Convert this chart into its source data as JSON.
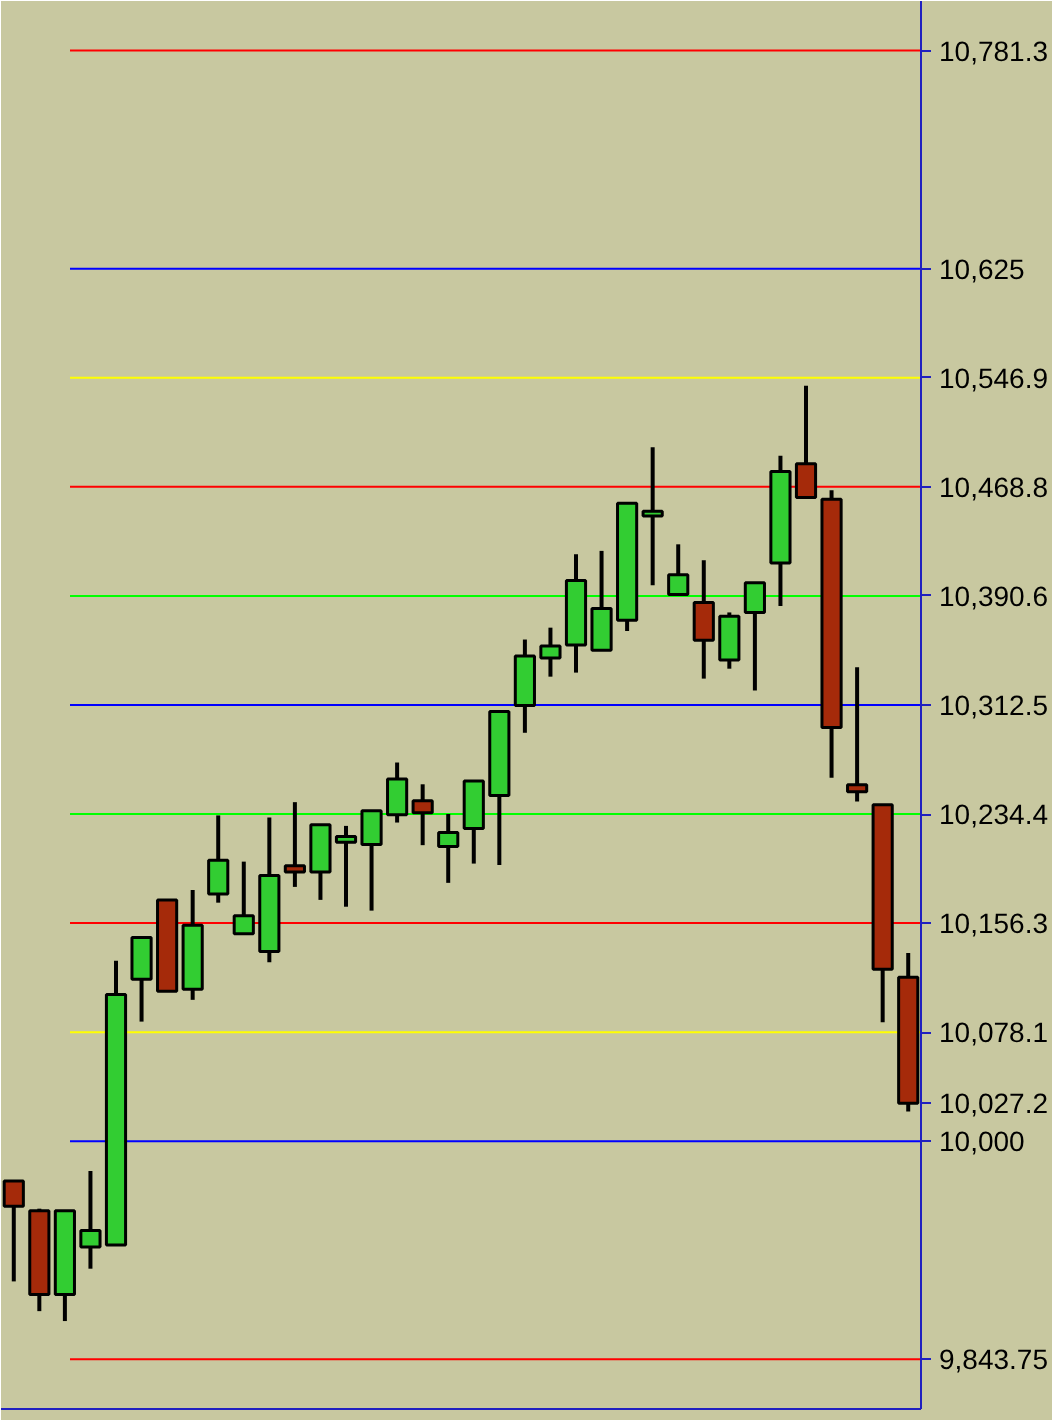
{
  "chart_data": {
    "type": "candlestick",
    "categories": [
      null,
      null,
      null,
      null,
      null,
      null,
      null,
      null,
      null,
      null,
      null,
      null,
      null,
      null,
      null,
      null,
      null,
      null,
      null,
      null,
      null,
      null,
      null,
      null,
      null,
      null,
      null,
      null,
      null,
      null,
      null,
      null,
      null,
      null,
      null,
      null
    ],
    "ohlc": [
      [
        9971.6,
        9971.6,
        9899.6,
        9953.5
      ],
      [
        9950.3,
        9951.7,
        9878.3,
        9890.2
      ],
      [
        9890.2,
        9950.3,
        9871.2,
        9950.3
      ],
      [
        9924.3,
        9978.7,
        9908.7,
        9936.1
      ],
      [
        9925.7,
        10129.3,
        9925.7,
        10105.1
      ],
      [
        10116.1,
        10145.9,
        10085.7,
        10145.9
      ],
      [
        10172.9,
        10172.9,
        10107.5,
        10107.5
      ],
      [
        10108.9,
        10180.0,
        10101.3,
        10154.8
      ],
      [
        10177.1,
        10233.4,
        10170.9,
        10201.3
      ],
      [
        10148.7,
        10200.3,
        10148.7,
        10161.5
      ],
      [
        10135.9,
        10232.0,
        10128.3,
        10190.3
      ],
      [
        10197.4,
        10242.9,
        10182.2,
        10192.8
      ],
      [
        10192.8,
        10226.8,
        10172.9,
        10226.8
      ],
      [
        10214.1,
        10225.9,
        10168.0,
        10218.3
      ],
      [
        10212.6,
        10236.8,
        10165.2,
        10236.8
      ],
      [
        10233.9,
        10271.3,
        10228.3,
        10259.5
      ],
      [
        10243.9,
        10255.7,
        10212.1,
        10235.4
      ],
      [
        10211.2,
        10234.4,
        10185.1,
        10221.2
      ],
      [
        10224.0,
        10258.1,
        10198.9,
        10258.1
      ],
      [
        10247.6,
        10307.8,
        10197.9,
        10307.8
      ],
      [
        10312.1,
        10359.4,
        10292.6,
        10347.6
      ],
      [
        10346.2,
        10367.9,
        10332.8,
        10354.7
      ],
      [
        10355.5,
        10420.5,
        10335.7,
        10401.6
      ],
      [
        10351.8,
        10422.9,
        10351.8,
        10381.7
      ],
      [
        10373.2,
        10457.0,
        10365.5,
        10457.0
      ],
      [
        10447.9,
        10497.2,
        10398.2,
        10451.3
      ],
      [
        10391.6,
        10427.6,
        10391.6,
        10405.8
      ],
      [
        10385.9,
        10416.2,
        10331.4,
        10358.9
      ],
      [
        10344.7,
        10378.8,
        10338.5,
        10376.0
      ],
      [
        10378.8,
        10400.1,
        10322.9,
        10400.1
      ],
      [
        10414.3,
        10491.0,
        10383.5,
        10479.7
      ],
      [
        10485.4,
        10541.2,
        10461.2,
        10461.2
      ],
      [
        10459.8,
        10466.3,
        10260.4,
        10296.4
      ],
      [
        10255.3,
        10339.5,
        10243.3,
        10250.4
      ],
      [
        10241.0,
        10241.0,
        10085.2,
        10123.2
      ],
      [
        10117.5,
        10134.9,
        10021.3,
        10027.2
      ]
    ],
    "colors": [
      "#a52a0a",
      "#a52a0a",
      "#32cd32",
      "#32cd32",
      "#32cd32",
      "#32cd32",
      "#a52a0a",
      "#32cd32",
      "#32cd32",
      "#32cd32",
      "#32cd32",
      "#a52a0a",
      "#32cd32",
      "#32cd32",
      "#32cd32",
      "#32cd32",
      "#a52a0a",
      "#32cd32",
      "#32cd32",
      "#32cd32",
      "#32cd32",
      "#32cd32",
      "#32cd32",
      "#32cd32",
      "#32cd32",
      "#32cd32",
      "#32cd32",
      "#a52a0a",
      "#32cd32",
      "#32cd32",
      "#32cd32",
      "#a52a0a",
      "#a52a0a",
      "#a52a0a",
      "#a52a0a",
      "#a52a0a"
    ],
    "ylim": [
      9808.2,
      10816.8
    ],
    "yticks": [
      {
        "value": 10781.3,
        "label": "10,781.3"
      },
      {
        "value": 10625,
        "label": "10,625"
      },
      {
        "value": 10546.9,
        "label": "10,546.9"
      },
      {
        "value": 10468.8,
        "label": "10,468.8"
      },
      {
        "value": 10390.6,
        "label": "10,390.6"
      },
      {
        "value": 10312.5,
        "label": "10,312.5"
      },
      {
        "value": 10234.4,
        "label": "10,234.4"
      },
      {
        "value": 10156.3,
        "label": "10,156.3"
      },
      {
        "value": 10078.1,
        "label": "10,078.1"
      },
      {
        "value": 10027.2,
        "label": "10,027.2"
      },
      {
        "value": 10000,
        "label": "10,000"
      },
      {
        "value": 9843.75,
        "label": "9,843.75"
      }
    ],
    "ref_lines": [
      {
        "axis": "y",
        "value": 10781.3,
        "color": "#ff0000"
      },
      {
        "axis": "y",
        "value": 10625,
        "color": "#0000ff"
      },
      {
        "axis": "y",
        "value": 10546.9,
        "color": "#ffff00"
      },
      {
        "axis": "y",
        "value": 10468.8,
        "color": "#ff0000"
      },
      {
        "axis": "y",
        "value": 10390.6,
        "color": "#00ff00"
      },
      {
        "axis": "y",
        "value": 10312.5,
        "color": "#0000ff"
      },
      {
        "axis": "y",
        "value": 10234.4,
        "color": "#00ff00"
      },
      {
        "axis": "y",
        "value": 10156.3,
        "color": "#ff0000"
      },
      {
        "axis": "y",
        "value": 10078.1,
        "color": "#ffff00"
      },
      {
        "axis": "y",
        "value": 10000,
        "color": "#0000ff"
      },
      {
        "axis": "y",
        "value": 9843.75,
        "color": "#ff0000"
      }
    ],
    "grid": false
  }
}
